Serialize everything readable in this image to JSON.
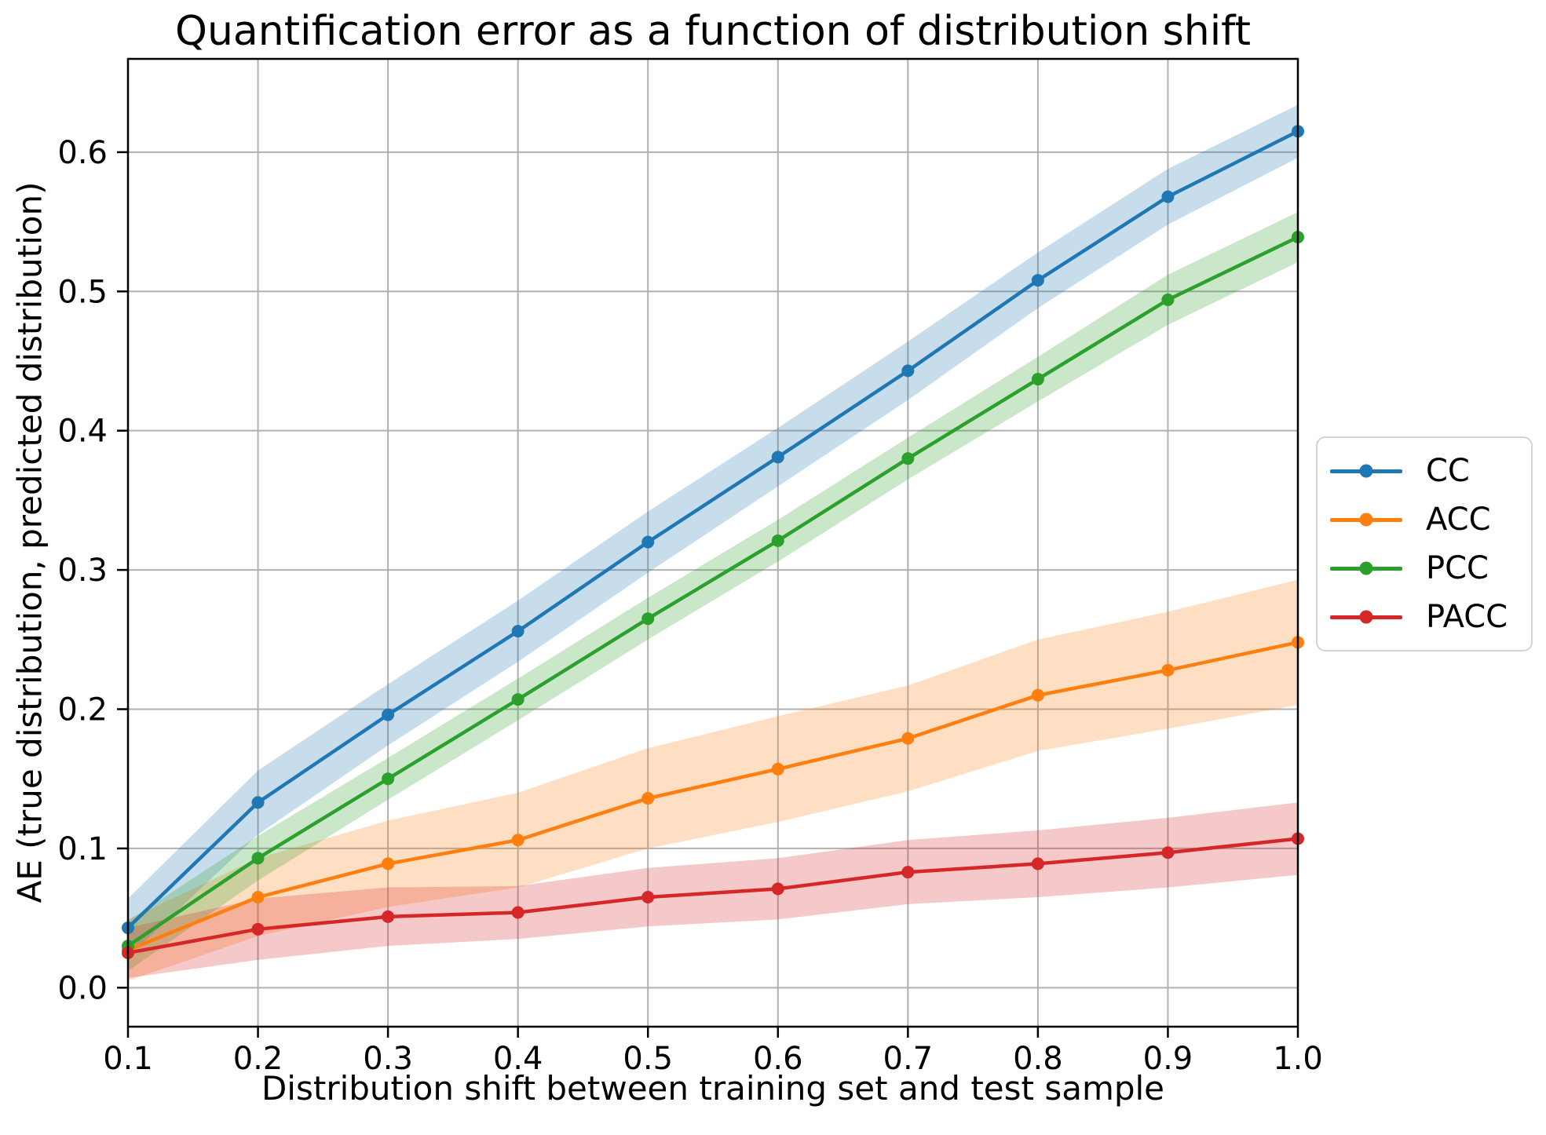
{
  "figure": {
    "title": "Quantification error as a function of distribution shift",
    "xlabel": "Distribution shift between training set and test sample",
    "ylabel": "AE (true distribution, predicted distribution)"
  },
  "chart_data": {
    "type": "line",
    "title": "Quantification error as a function of distribution shift",
    "xlabel": "Distribution shift between training set and test sample",
    "ylabel": "AE (true distribution, predicted distribution)",
    "grid": true,
    "grid_color": "#b0b0b0",
    "legend_position": "right-outside",
    "band_alpha": 0.25,
    "x": [
      0.1,
      0.2,
      0.3,
      0.4,
      0.5,
      0.6,
      0.7,
      0.8,
      0.9,
      1.0
    ],
    "xticks": [
      "0.1",
      "0.2",
      "0.3",
      "0.4",
      "0.5",
      "0.6",
      "0.7",
      "0.8",
      "0.9",
      "1.0"
    ],
    "yticks": [
      "0.0",
      "0.1",
      "0.2",
      "0.3",
      "0.4",
      "0.5",
      "0.6"
    ],
    "xlim": [
      0.1,
      1.0
    ],
    "ylim": [
      -0.028,
      0.667
    ],
    "series": [
      {
        "name": "CC",
        "color": "#1f77b4",
        "values": [
          0.043,
          0.133,
          0.196,
          0.256,
          0.32,
          0.381,
          0.443,
          0.508,
          0.568,
          0.615
        ],
        "band_lower": [
          0.022,
          0.11,
          0.174,
          0.234,
          0.298,
          0.36,
          0.422,
          0.488,
          0.548,
          0.596
        ],
        "band_upper": [
          0.064,
          0.156,
          0.218,
          0.278,
          0.342,
          0.402,
          0.464,
          0.528,
          0.588,
          0.634
        ]
      },
      {
        "name": "ACC",
        "color": "#ff7f0e",
        "values": [
          0.027,
          0.065,
          0.089,
          0.106,
          0.136,
          0.157,
          0.179,
          0.21,
          0.228,
          0.248
        ],
        "band_lower": [
          0.005,
          0.037,
          0.058,
          0.072,
          0.1,
          0.119,
          0.141,
          0.17,
          0.186,
          0.203
        ],
        "band_upper": [
          0.049,
          0.093,
          0.12,
          0.14,
          0.172,
          0.195,
          0.217,
          0.25,
          0.27,
          0.293
        ]
      },
      {
        "name": "PCC",
        "color": "#2ca02c",
        "values": [
          0.03,
          0.093,
          0.15,
          0.207,
          0.265,
          0.321,
          0.38,
          0.437,
          0.494,
          0.539
        ],
        "band_lower": [
          0.012,
          0.077,
          0.135,
          0.192,
          0.25,
          0.306,
          0.365,
          0.421,
          0.476,
          0.521
        ],
        "band_upper": [
          0.048,
          0.109,
          0.165,
          0.222,
          0.28,
          0.336,
          0.395,
          0.453,
          0.512,
          0.557
        ]
      },
      {
        "name": "PACC",
        "color": "#d62728",
        "values": [
          0.025,
          0.042,
          0.051,
          0.054,
          0.065,
          0.071,
          0.083,
          0.089,
          0.097,
          0.107
        ],
        "band_lower": [
          0.007,
          0.02,
          0.03,
          0.035,
          0.044,
          0.049,
          0.06,
          0.065,
          0.072,
          0.081
        ],
        "band_upper": [
          0.043,
          0.064,
          0.072,
          0.073,
          0.086,
          0.093,
          0.106,
          0.113,
          0.122,
          0.133
        ]
      }
    ]
  },
  "legend": {
    "entries": [
      {
        "label": "CC",
        "color": "#1f77b4"
      },
      {
        "label": "ACC",
        "color": "#ff7f0e"
      },
      {
        "label": "PCC",
        "color": "#2ca02c"
      },
      {
        "label": "PACC",
        "color": "#d62728"
      }
    ]
  }
}
